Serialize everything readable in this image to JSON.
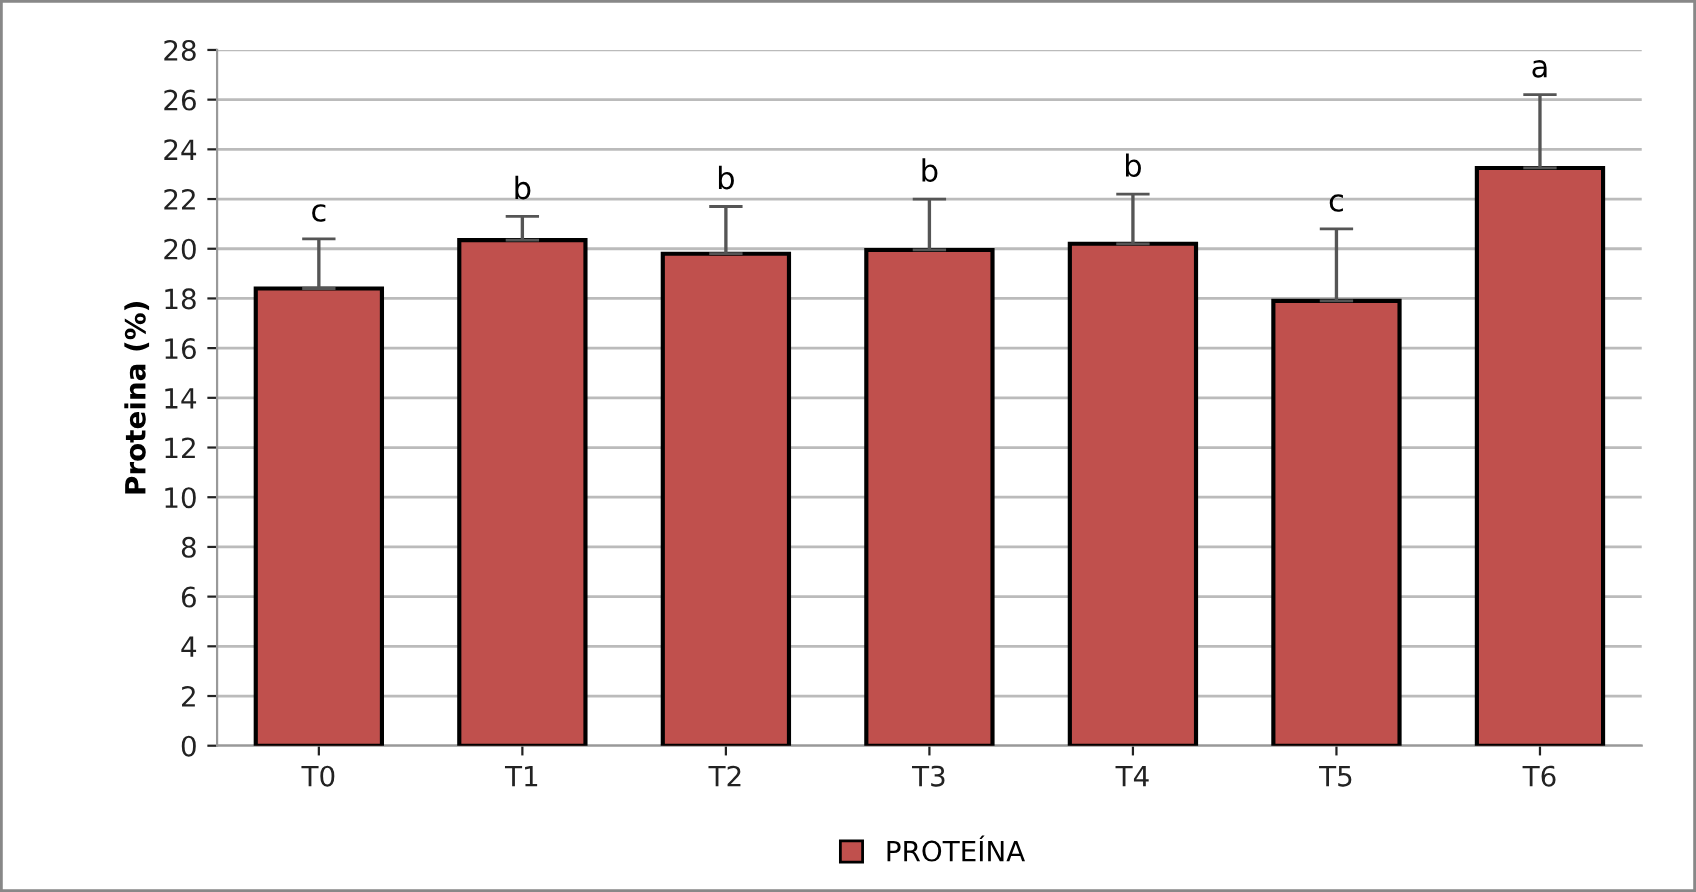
{
  "chart_data": {
    "type": "bar",
    "ylabel": "Proteina (%)",
    "categories": [
      "T0",
      "T1",
      "T2",
      "T3",
      "T4",
      "T5",
      "T6"
    ],
    "series": [
      {
        "name": "PROTEÍNA",
        "color": "#c0504d",
        "values": [
          18.4,
          20.35,
          19.8,
          19.95,
          20.2,
          17.9,
          23.25
        ],
        "errors": [
          [
            18.4,
            20.4
          ],
          [
            20.35,
            21.3
          ],
          [
            19.8,
            21.7
          ],
          [
            19.95,
            22.0
          ],
          [
            20.2,
            22.2
          ],
          [
            17.9,
            20.8
          ],
          [
            23.25,
            26.2
          ]
        ]
      }
    ],
    "annotations": [
      {
        "text": "c",
        "x": "T0",
        "y": 20.4
      },
      {
        "text": "b",
        "x": "T1",
        "y": 21.3
      },
      {
        "text": "b",
        "x": "T2",
        "y": 21.7
      },
      {
        "text": "b",
        "x": "T3",
        "y": 22.0
      },
      {
        "text": "b",
        "x": "T4",
        "y": 22.2
      },
      {
        "text": "c",
        "x": "T5",
        "y": 20.8
      },
      {
        "text": "a",
        "x": "T6",
        "y": 26.2
      }
    ],
    "ylim": [
      0,
      28
    ],
    "yticks": [
      0,
      2,
      4,
      6,
      8,
      10,
      12,
      14,
      16,
      18,
      20,
      22,
      24,
      26,
      28
    ],
    "grid": "y",
    "legend": "bottom"
  }
}
